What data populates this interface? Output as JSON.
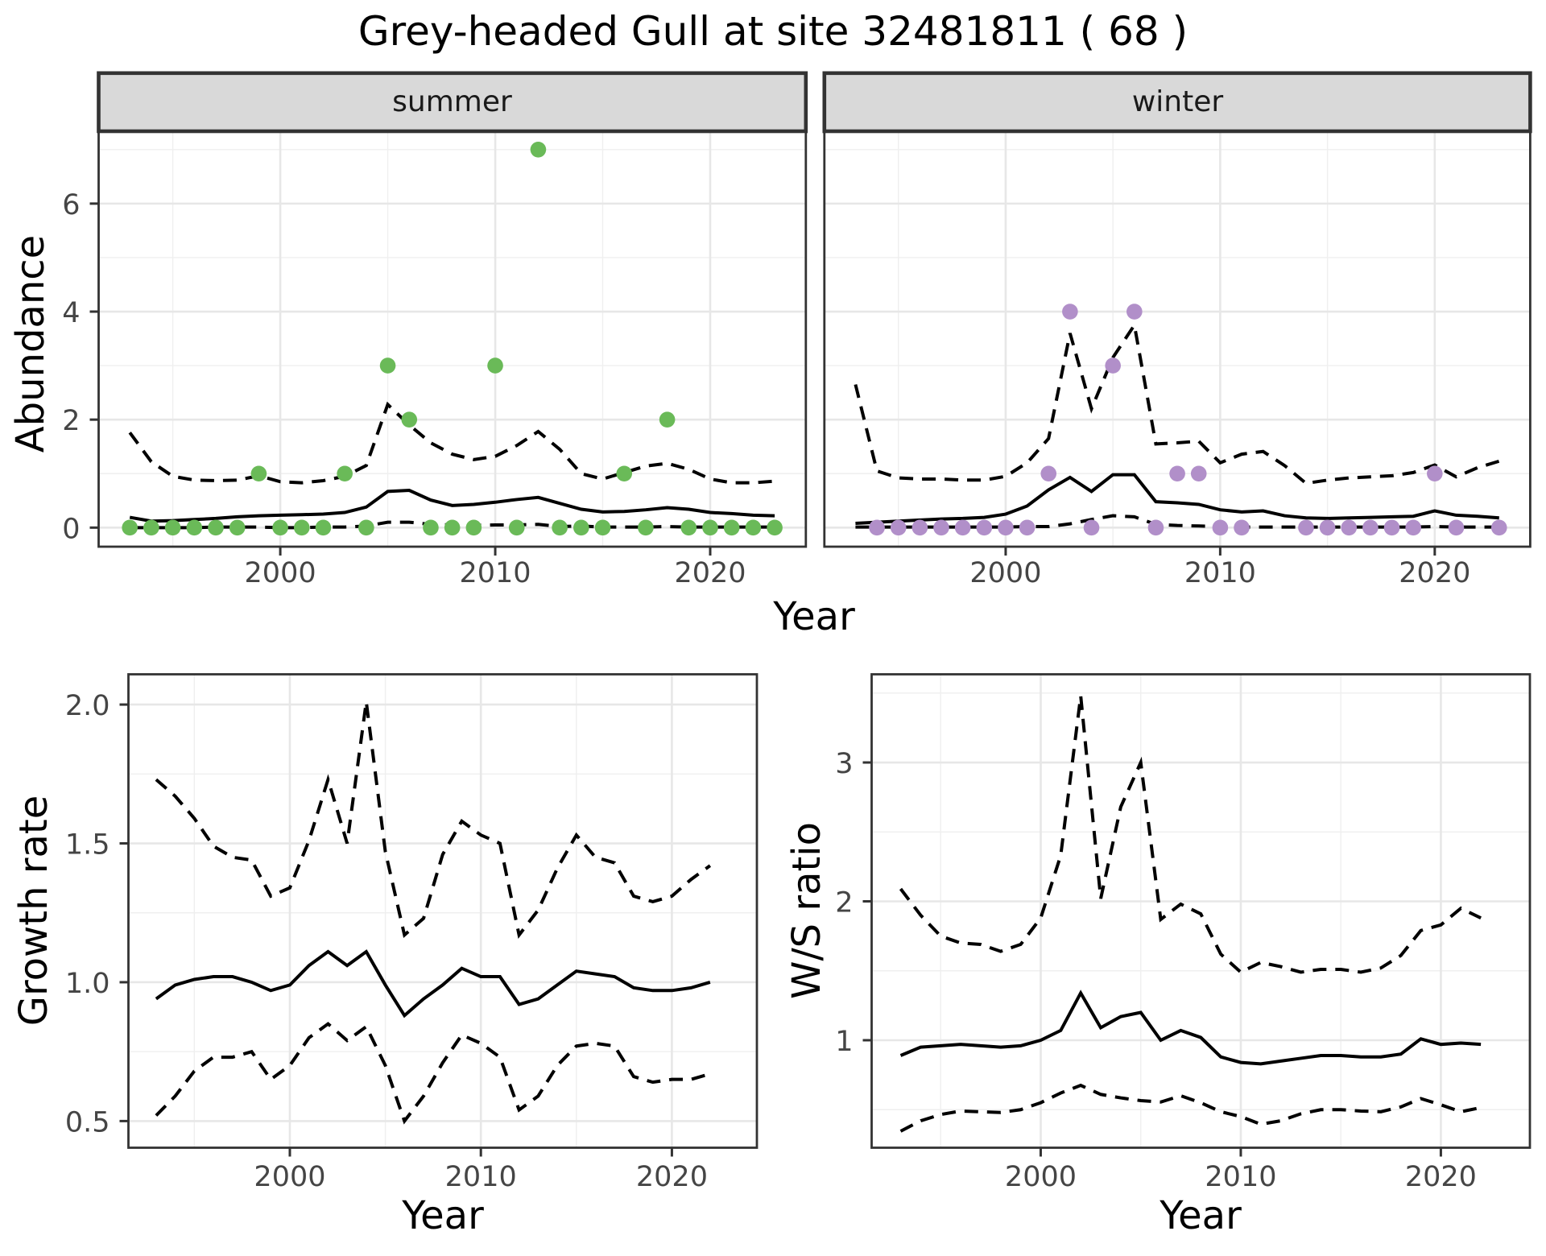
{
  "title": "Grey-headed Gull at site 32481811 ( 68 )",
  "colors": {
    "summer_points": "#6aba58",
    "winter_points": "#b18fc9",
    "line": "#000000",
    "strip_background": "#d9d9d9",
    "panel_border": "#333333",
    "grid_major": "#e7e7e7",
    "grid_minor": "#efefef",
    "tick_label": "#454545",
    "text": "#000000"
  },
  "chart_data": [
    {
      "id": "abundance-summer",
      "type": "line",
      "facet_label": "summer",
      "xlabel": "Year",
      "ylabel": "Abundance",
      "xlim": [
        1991.55,
        2024.45
      ],
      "ylim": [
        -0.353,
        7.34
      ],
      "xticks": {
        "major": [
          2000,
          2010,
          2020
        ],
        "labels": [
          "2000",
          "2010",
          "2020"
        ],
        "minor": [
          1995,
          2005,
          2015
        ]
      },
      "yticks": {
        "major": [
          0,
          2,
          4,
          6
        ],
        "labels": [
          "0",
          "2",
          "4",
          "6"
        ],
        "minor": [
          1,
          3,
          5,
          7
        ]
      },
      "grid": true,
      "legend": "none",
      "x": [
        1993,
        1994,
        1995,
        1996,
        1997,
        1998,
        1999,
        2000,
        2001,
        2002,
        2003,
        2004,
        2005,
        2006,
        2007,
        2008,
        2009,
        2010,
        2011,
        2012,
        2013,
        2014,
        2015,
        2016,
        2017,
        2018,
        2019,
        2020,
        2021,
        2022,
        2023
      ],
      "series": [
        {
          "name": "median",
          "style": "solid",
          "values": [
            0.19,
            0.12,
            0.13,
            0.15,
            0.17,
            0.2,
            0.22,
            0.23,
            0.24,
            0.25,
            0.28,
            0.38,
            0.67,
            0.69,
            0.51,
            0.41,
            0.43,
            0.47,
            0.52,
            0.56,
            0.45,
            0.34,
            0.29,
            0.3,
            0.33,
            0.37,
            0.34,
            0.28,
            0.26,
            0.23,
            0.22
          ]
        },
        {
          "name": "upper credible interval",
          "style": "dashed",
          "values": [
            1.76,
            1.22,
            0.95,
            0.88,
            0.87,
            0.88,
            0.96,
            0.85,
            0.83,
            0.87,
            0.95,
            1.15,
            2.28,
            1.9,
            1.57,
            1.36,
            1.26,
            1.32,
            1.52,
            1.78,
            1.45,
            1.0,
            0.9,
            1.02,
            1.14,
            1.19,
            1.08,
            0.9,
            0.83,
            0.83,
            0.86
          ]
        },
        {
          "name": "lower credible interval",
          "style": "dashed",
          "values": [
            0,
            0,
            0,
            0,
            0.01,
            0.01,
            0.01,
            0,
            0,
            0.01,
            0.01,
            0.03,
            0.1,
            0.1,
            0.06,
            0.05,
            0.04,
            0.05,
            0.05,
            0.06,
            0.02,
            0.03,
            0.01,
            0.01,
            0.01,
            0.02,
            0.01,
            0.01,
            0.01,
            0.01,
            0.01
          ]
        }
      ],
      "points": {
        "name": "observed abundance",
        "color": "#6aba58",
        "x": [
          1993,
          1994,
          1995,
          1996,
          1997,
          1998,
          1999,
          2000,
          2001,
          2002,
          2003,
          2004,
          2005,
          2006,
          2007,
          2008,
          2009,
          2010,
          2011,
          2012,
          2013,
          2014,
          2015,
          2016,
          2017,
          2018,
          2019,
          2020,
          2021,
          2022,
          2023
        ],
        "values": [
          0,
          0,
          0,
          0,
          0,
          0,
          1,
          0,
          0,
          0,
          1,
          0,
          3,
          2,
          0,
          0,
          0,
          3,
          0,
          7,
          0,
          0,
          0,
          1,
          0,
          2,
          0,
          0,
          0,
          0,
          0
        ]
      }
    },
    {
      "id": "abundance-winter",
      "type": "line",
      "facet_label": "winter",
      "xlabel": "Year",
      "ylabel": "",
      "xlim": [
        1991.55,
        2024.45
      ],
      "ylim": [
        -0.353,
        7.34
      ],
      "xticks": {
        "major": [
          2000,
          2010,
          2020
        ],
        "labels": [
          "2000",
          "2010",
          "2020"
        ],
        "minor": [
          1995,
          2005,
          2015
        ]
      },
      "yticks": {
        "major": [
          0,
          2,
          4,
          6
        ],
        "labels": [],
        "minor": [
          1,
          3,
          5,
          7
        ]
      },
      "grid": true,
      "legend": "none",
      "x": [
        1993,
        1994,
        1995,
        1996,
        1997,
        1998,
        1999,
        2000,
        2001,
        2002,
        2003,
        2004,
        2005,
        2006,
        2007,
        2008,
        2009,
        2010,
        2011,
        2012,
        2013,
        2014,
        2015,
        2016,
        2017,
        2018,
        2019,
        2020,
        2021,
        2022,
        2023
      ],
      "series": [
        {
          "name": "median",
          "style": "solid",
          "values": [
            0.08,
            0.1,
            0.12,
            0.14,
            0.16,
            0.17,
            0.19,
            0.25,
            0.4,
            0.7,
            0.93,
            0.67,
            0.98,
            0.98,
            0.48,
            0.46,
            0.43,
            0.33,
            0.29,
            0.31,
            0.22,
            0.18,
            0.17,
            0.18,
            0.19,
            0.2,
            0.21,
            0.31,
            0.23,
            0.21,
            0.18
          ]
        },
        {
          "name": "upper credible interval",
          "style": "dashed",
          "values": [
            2.65,
            1.05,
            0.92,
            0.9,
            0.9,
            0.88,
            0.88,
            0.95,
            1.2,
            1.65,
            3.6,
            2.2,
            3.15,
            3.75,
            1.55,
            1.57,
            1.6,
            1.2,
            1.36,
            1.41,
            1.15,
            0.82,
            0.88,
            0.92,
            0.94,
            0.96,
            1.02,
            1.16,
            0.94,
            1.11,
            1.23
          ]
        },
        {
          "name": "lower credible interval",
          "style": "dashed",
          "values": [
            0.01,
            0.01,
            0.01,
            0.01,
            0.01,
            0.01,
            0.01,
            0.01,
            0.02,
            0.02,
            0.07,
            0.15,
            0.22,
            0.2,
            0.06,
            0.04,
            0.03,
            0.02,
            0.01,
            0.01,
            0.01,
            0.01,
            0.01,
            0.01,
            0.01,
            0.01,
            0.01,
            0.02,
            0.01,
            0.01,
            0.01
          ]
        }
      ],
      "points": {
        "name": "observed abundance",
        "color": "#b18fc9",
        "x": [
          1994,
          1995,
          1996,
          1997,
          1998,
          1999,
          2000,
          2001,
          2002,
          2003,
          2004,
          2005,
          2006,
          2007,
          2008,
          2009,
          2010,
          2011,
          2014,
          2015,
          2016,
          2017,
          2018,
          2019,
          2020,
          2021,
          2023
        ],
        "values": [
          0,
          0,
          0,
          0,
          0,
          0,
          0,
          0,
          1,
          4,
          0,
          3,
          4,
          0,
          1,
          1,
          0,
          0,
          0,
          0,
          0,
          0,
          0,
          0,
          1,
          0,
          0
        ]
      }
    },
    {
      "id": "growth-rate",
      "type": "line",
      "facet_label": "",
      "xlabel": "Year",
      "ylabel": "Growth rate",
      "xlim": [
        1991.55,
        2024.45
      ],
      "ylim": [
        0.404,
        2.109
      ],
      "xticks": {
        "major": [
          2000,
          2010,
          2020
        ],
        "labels": [
          "2000",
          "2010",
          "2020"
        ],
        "minor": [
          1995,
          2005,
          2015
        ]
      },
      "yticks": {
        "major": [
          0.5,
          1.0,
          1.5,
          2.0
        ],
        "labels": [
          "0.5",
          "1.0",
          "1.5",
          "2.0"
        ],
        "minor": [
          0.75,
          1.25,
          1.75
        ]
      },
      "grid": true,
      "legend": "none",
      "x": [
        1993,
        1994,
        1995,
        1996,
        1997,
        1998,
        1999,
        2000,
        2001,
        2002,
        2003,
        2004,
        2005,
        2006,
        2007,
        2008,
        2009,
        2010,
        2011,
        2012,
        2013,
        2014,
        2015,
        2016,
        2017,
        2018,
        2019,
        2020,
        2021,
        2022
      ],
      "series": [
        {
          "name": "median",
          "style": "solid",
          "values": [
            0.94,
            0.99,
            1.01,
            1.02,
            1.02,
            1.0,
            0.97,
            0.99,
            1.06,
            1.11,
            1.06,
            1.11,
            0.99,
            0.88,
            0.94,
            0.99,
            1.05,
            1.02,
            1.02,
            0.92,
            0.94,
            0.99,
            1.04,
            1.03,
            1.02,
            0.98,
            0.97,
            0.97,
            0.98,
            1.0
          ]
        },
        {
          "name": "upper credible interval",
          "style": "dashed",
          "values": [
            1.73,
            1.67,
            1.59,
            1.49,
            1.45,
            1.44,
            1.31,
            1.34,
            1.51,
            1.73,
            1.5,
            2.01,
            1.47,
            1.17,
            1.23,
            1.46,
            1.58,
            1.53,
            1.5,
            1.17,
            1.26,
            1.41,
            1.53,
            1.45,
            1.43,
            1.31,
            1.29,
            1.31,
            1.37,
            1.42
          ]
        },
        {
          "name": "lower credible interval",
          "style": "dashed",
          "values": [
            0.52,
            0.59,
            0.68,
            0.73,
            0.73,
            0.75,
            0.65,
            0.7,
            0.8,
            0.85,
            0.79,
            0.84,
            0.7,
            0.5,
            0.59,
            0.71,
            0.81,
            0.78,
            0.73,
            0.54,
            0.59,
            0.7,
            0.77,
            0.78,
            0.77,
            0.66,
            0.64,
            0.65,
            0.65,
            0.67
          ]
        }
      ],
      "points": null
    },
    {
      "id": "ws-ratio",
      "type": "line",
      "facet_label": "",
      "xlabel": "Year",
      "ylabel": "W/S ratio",
      "xlim": [
        1991.55,
        2024.45
      ],
      "ylim": [
        0.226,
        3.635
      ],
      "xticks": {
        "major": [
          2000,
          2010,
          2020
        ],
        "labels": [
          "2000",
          "2010",
          "2020"
        ],
        "minor": [
          1995,
          2005,
          2015
        ]
      },
      "yticks": {
        "major": [
          1,
          2,
          3
        ],
        "labels": [
          "1",
          "2",
          "3"
        ],
        "minor": [
          0.5,
          1.5,
          2.5,
          3.5
        ]
      },
      "grid": true,
      "legend": "none",
      "x": [
        1993,
        1994,
        1995,
        1996,
        1997,
        1998,
        1999,
        2000,
        2001,
        2002,
        2003,
        2004,
        2005,
        2006,
        2007,
        2008,
        2009,
        2010,
        2011,
        2012,
        2013,
        2014,
        2015,
        2016,
        2017,
        2018,
        2019,
        2020,
        2021,
        2022
      ],
      "series": [
        {
          "name": "median",
          "style": "solid",
          "values": [
            0.89,
            0.95,
            0.96,
            0.97,
            0.96,
            0.95,
            0.96,
            1.0,
            1.07,
            1.34,
            1.09,
            1.17,
            1.2,
            1.0,
            1.07,
            1.02,
            0.88,
            0.84,
            0.83,
            0.85,
            0.87,
            0.89,
            0.89,
            0.88,
            0.88,
            0.9,
            1.01,
            0.97,
            0.98,
            0.97
          ]
        },
        {
          "name": "upper credible interval",
          "style": "dashed",
          "values": [
            2.09,
            1.9,
            1.75,
            1.7,
            1.69,
            1.64,
            1.69,
            1.88,
            2.33,
            3.48,
            2.02,
            2.68,
            3.0,
            1.87,
            1.98,
            1.91,
            1.62,
            1.49,
            1.56,
            1.53,
            1.49,
            1.51,
            1.51,
            1.49,
            1.52,
            1.61,
            1.79,
            1.83,
            1.95,
            1.88
          ]
        },
        {
          "name": "lower credible interval",
          "style": "dashed",
          "values": [
            0.345,
            0.42,
            0.465,
            0.49,
            0.485,
            0.48,
            0.5,
            0.55,
            0.62,
            0.675,
            0.61,
            0.585,
            0.565,
            0.555,
            0.6,
            0.55,
            0.485,
            0.45,
            0.395,
            0.42,
            0.47,
            0.5,
            0.5,
            0.49,
            0.485,
            0.52,
            0.58,
            0.535,
            0.485,
            0.515
          ]
        }
      ],
      "points": null
    }
  ]
}
